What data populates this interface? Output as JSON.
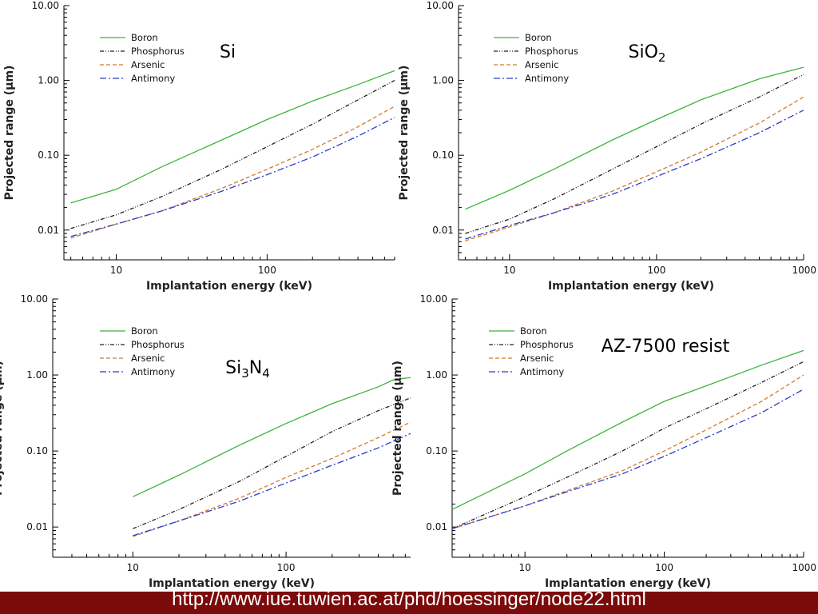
{
  "footer": {
    "url": "http://www.iue.tuwien.ac.at/phd/hoessinger/node22.html"
  },
  "chart_data": [
    {
      "type": "line",
      "material": "Si",
      "xlabel": "Implantation energy (keV)",
      "ylabel": "Projected range (µm)",
      "xscale": "log",
      "yscale": "log",
      "xlim": [
        4.5,
        700
      ],
      "ylim": [
        0.004,
        10
      ],
      "xticks": [
        {
          "v": 10,
          "label": "10"
        },
        {
          "v": 100,
          "label": "100"
        }
      ],
      "yticks": [
        {
          "v": 10,
          "label": "10.00"
        },
        {
          "v": 1,
          "label": "1.00"
        },
        {
          "v": 0.1,
          "label": "0.10"
        },
        {
          "v": 0.01,
          "label": "0.01"
        }
      ],
      "legend": "top-left",
      "series": [
        {
          "name": "Boron",
          "color": "#3cb43c",
          "dash": "solid",
          "x": [
            5,
            10,
            20,
            50,
            100,
            200,
            400,
            700
          ],
          "y": [
            0.023,
            0.035,
            0.07,
            0.16,
            0.3,
            0.53,
            0.88,
            1.35
          ]
        },
        {
          "name": "Phosphorus",
          "color": "#222222",
          "dash": "dashdotdot",
          "x": [
            5,
            10,
            20,
            50,
            100,
            200,
            400,
            700
          ],
          "y": [
            0.0105,
            0.016,
            0.028,
            0.065,
            0.13,
            0.26,
            0.55,
            1.0
          ]
        },
        {
          "name": "Arsenic",
          "color": "#d07a30",
          "dash": "dash",
          "x": [
            5,
            10,
            20,
            50,
            100,
            200,
            400,
            700
          ],
          "y": [
            0.0078,
            0.012,
            0.018,
            0.036,
            0.065,
            0.12,
            0.24,
            0.45
          ]
        },
        {
          "name": "Antimony",
          "color": "#2a3cc8",
          "dash": "dashdot",
          "x": [
            5,
            10,
            20,
            50,
            100,
            200,
            400,
            700
          ],
          "y": [
            0.0082,
            0.012,
            0.018,
            0.033,
            0.055,
            0.095,
            0.18,
            0.32
          ]
        }
      ]
    },
    {
      "type": "line",
      "material": "SiO",
      "material_sub": "2",
      "xlabel": "Implantation energy (keV)",
      "ylabel": "Projected range (µm)",
      "xscale": "log",
      "yscale": "log",
      "xlim": [
        4.5,
        1000
      ],
      "ylim": [
        0.004,
        10
      ],
      "xticks": [
        {
          "v": 10,
          "label": "10"
        },
        {
          "v": 100,
          "label": "100"
        },
        {
          "v": 1000,
          "label": "1000"
        }
      ],
      "yticks": [
        {
          "v": 10,
          "label": "10.00"
        },
        {
          "v": 1,
          "label": "1.00"
        },
        {
          "v": 0.1,
          "label": "0.10"
        },
        {
          "v": 0.01,
          "label": "0.01"
        }
      ],
      "legend": "top-left",
      "series": [
        {
          "name": "Boron",
          "color": "#3cb43c",
          "dash": "solid",
          "x": [
            5,
            10,
            20,
            50,
            100,
            200,
            500,
            1000
          ],
          "y": [
            0.019,
            0.034,
            0.065,
            0.16,
            0.3,
            0.55,
            1.05,
            1.5
          ]
        },
        {
          "name": "Phosphorus",
          "color": "#222222",
          "dash": "dashdotdot",
          "x": [
            5,
            10,
            20,
            50,
            100,
            200,
            500,
            1000
          ],
          "y": [
            0.009,
            0.014,
            0.026,
            0.065,
            0.13,
            0.26,
            0.6,
            1.2
          ]
        },
        {
          "name": "Arsenic",
          "color": "#d07a30",
          "dash": "dash",
          "x": [
            5,
            10,
            20,
            50,
            100,
            200,
            500,
            1000
          ],
          "y": [
            0.0072,
            0.011,
            0.017,
            0.033,
            0.06,
            0.11,
            0.27,
            0.6
          ]
        },
        {
          "name": "Antimony",
          "color": "#2a3cc8",
          "dash": "dashdot",
          "x": [
            5,
            10,
            20,
            50,
            100,
            200,
            500,
            1000
          ],
          "y": [
            0.0076,
            0.0115,
            0.017,
            0.03,
            0.052,
            0.09,
            0.2,
            0.4
          ]
        }
      ]
    },
    {
      "type": "line",
      "material": "Si",
      "material_n": "N",
      "material_sub": "3",
      "material_sub2": "4",
      "xlabel": "Implantation energy (keV)",
      "ylabel": "Projected range (µm)",
      "xscale": "log",
      "yscale": "log",
      "xlim": [
        3,
        650
      ],
      "ylim": [
        0.004,
        10
      ],
      "xticks": [
        {
          "v": 10,
          "label": "10"
        },
        {
          "v": 100,
          "label": "100"
        }
      ],
      "yticks": [
        {
          "v": 10,
          "label": "10.00"
        },
        {
          "v": 1,
          "label": "1.00"
        },
        {
          "v": 0.1,
          "label": "0.10"
        },
        {
          "v": 0.01,
          "label": "0.01"
        }
      ],
      "legend": "top-left",
      "series": [
        {
          "name": "Boron",
          "color": "#3cb43c",
          "dash": "solid",
          "x": [
            10,
            20,
            50,
            100,
            200,
            400,
            500,
            650
          ],
          "y": [
            0.025,
            0.048,
            0.12,
            0.23,
            0.42,
            0.7,
            0.86,
            0.93
          ]
        },
        {
          "name": "Phosphorus",
          "color": "#222222",
          "dash": "dashdotdot",
          "x": [
            10,
            20,
            50,
            100,
            200,
            400,
            650
          ],
          "y": [
            0.0095,
            0.017,
            0.04,
            0.085,
            0.18,
            0.34,
            0.5
          ]
        },
        {
          "name": "Arsenic",
          "color": "#d07a30",
          "dash": "dash",
          "x": [
            10,
            20,
            50,
            100,
            200,
            400,
            650
          ],
          "y": [
            0.0075,
            0.012,
            0.024,
            0.045,
            0.08,
            0.15,
            0.24
          ]
        },
        {
          "name": "Antimony",
          "color": "#2a3cc8",
          "dash": "dashdot",
          "x": [
            10,
            20,
            50,
            100,
            200,
            400,
            650
          ],
          "y": [
            0.0077,
            0.012,
            0.022,
            0.038,
            0.065,
            0.11,
            0.17
          ]
        }
      ]
    },
    {
      "type": "line",
      "material": "AZ-7500 resist",
      "xlabel": "Implantation energy (keV)",
      "ylabel": "Projected range (µm)",
      "xscale": "log",
      "yscale": "log",
      "xlim": [
        3,
        1000
      ],
      "ylim": [
        0.004,
        10
      ],
      "xticks": [
        {
          "v": 10,
          "label": "10"
        },
        {
          "v": 100,
          "label": "100"
        },
        {
          "v": 1000,
          "label": "1000"
        }
      ],
      "yticks": [
        {
          "v": 10,
          "label": "10.00"
        },
        {
          "v": 1,
          "label": "1.00"
        },
        {
          "v": 0.1,
          "label": "0.10"
        },
        {
          "v": 0.01,
          "label": "0.01"
        }
      ],
      "legend": "top-left",
      "series": [
        {
          "name": "Boron",
          "color": "#3cb43c",
          "dash": "solid",
          "x": [
            3,
            10,
            20,
            50,
            100,
            200,
            500,
            1000
          ],
          "y": [
            0.017,
            0.05,
            0.1,
            0.24,
            0.45,
            0.72,
            1.35,
            2.1
          ]
        },
        {
          "name": "Phosphorus",
          "color": "#222222",
          "dash": "dashdotdot",
          "x": [
            3,
            10,
            20,
            50,
            100,
            200,
            500,
            1000
          ],
          "y": [
            0.0095,
            0.025,
            0.045,
            0.1,
            0.2,
            0.36,
            0.8,
            1.5
          ]
        },
        {
          "name": "Arsenic",
          "color": "#d07a30",
          "dash": "dash",
          "x": [
            3,
            10,
            20,
            50,
            100,
            200,
            500,
            1000
          ],
          "y": [
            0.0095,
            0.019,
            0.03,
            0.055,
            0.1,
            0.19,
            0.45,
            1.0
          ]
        },
        {
          "name": "Antimony",
          "color": "#2a3cc8",
          "dash": "dashdot",
          "x": [
            3,
            10,
            20,
            50,
            100,
            200,
            500,
            1000
          ],
          "y": [
            0.0095,
            0.019,
            0.029,
            0.05,
            0.085,
            0.15,
            0.32,
            0.65
          ]
        }
      ]
    }
  ]
}
